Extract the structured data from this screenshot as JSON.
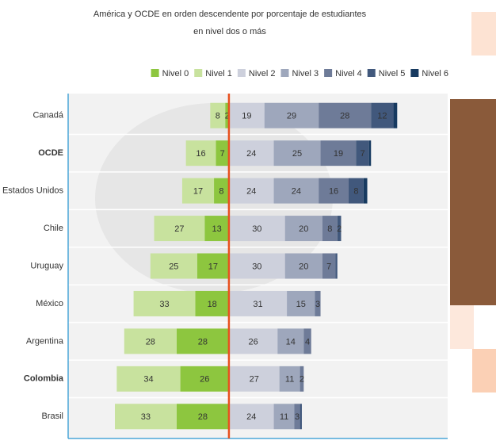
{
  "chart_data": {
    "type": "diverging-bar",
    "title_lines": [
      "América y OCDE en orden descendente por porcentaje de estudiantes",
      "en nivel dos o más"
    ],
    "categories": [
      "Canadá",
      "OCDE",
      "Estados Unidos",
      "Chile",
      "Uruguay",
      "México",
      "Argentina",
      "Colombia",
      "Brasil"
    ],
    "highlight": [
      1,
      7
    ],
    "highlight_color": "#e8501e",
    "xlim": [
      -86,
      117
    ],
    "series": [
      {
        "name": "Nivel 0",
        "color": "#8dc63f",
        "values": [
          -2,
          -7,
          -8,
          -13,
          -17,
          -18,
          -28,
          -26,
          -28
        ],
        "value_labels": [
          "2",
          "7",
          "8",
          "13",
          "17",
          "18",
          "28",
          "26",
          "28"
        ]
      },
      {
        "name": "Nivel 1",
        "color": "#c8e29e",
        "values": [
          -8,
          -16,
          -17,
          -27,
          -25,
          -33,
          -28,
          -34,
          -33
        ],
        "value_labels": [
          "8",
          "16",
          "17",
          "27",
          "25",
          "33",
          "28",
          "34",
          "33"
        ]
      },
      {
        "name": "Nivel 2",
        "color": "#cdd0dc",
        "values": [
          19,
          24,
          24,
          30,
          30,
          31,
          26,
          27,
          24
        ],
        "value_labels": [
          "19",
          "24",
          "24",
          "30",
          "30",
          "31",
          "26",
          "27",
          "24"
        ]
      },
      {
        "name": "Nivel 3",
        "color": "#9ea7bc",
        "values": [
          29,
          25,
          24,
          20,
          20,
          15,
          14,
          11,
          11
        ],
        "value_labels": [
          "29",
          "25",
          "24",
          "20",
          "20",
          "15",
          "14",
          "11",
          "11"
        ]
      },
      {
        "name": "Nivel 4",
        "color": "#6e7b98",
        "values": [
          28,
          19,
          16,
          8,
          7,
          3,
          4,
          2,
          3
        ],
        "value_labels": [
          "28",
          "19",
          "16",
          "8",
          "7",
          "3",
          "4",
          "2",
          "3"
        ]
      },
      {
        "name": "Nivel 5",
        "color": "#41587c",
        "values": [
          12,
          7,
          8,
          2,
          1,
          0,
          0,
          0,
          1
        ],
        "value_labels": [
          "12",
          "7",
          "8",
          "2",
          null,
          null,
          null,
          null,
          null
        ]
      },
      {
        "name": "Nivel 6",
        "color": "#173a60",
        "values": [
          2,
          1,
          2,
          0,
          0,
          0,
          0,
          0,
          0
        ],
        "value_labels": [
          null,
          null,
          null,
          null,
          null,
          null,
          null,
          null,
          null
        ]
      }
    ]
  }
}
